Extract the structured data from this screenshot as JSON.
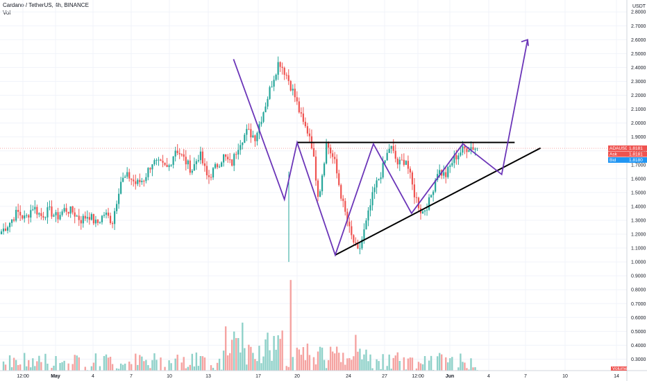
{
  "header": {
    "symbol_line": "Cardano / TetherUS, 4h, BINANCE",
    "vol_label": "Vol"
  },
  "colors": {
    "up": "#26a69a",
    "down": "#ef5350",
    "up_vol": "#8fd1c9",
    "down_vol": "#f5a3a1",
    "pattern": "#000000",
    "projection": "#6b35b8",
    "grid": "#f0f3fa"
  },
  "chart_data": {
    "type": "candlestick",
    "title": "Cardano / TetherUS, 4h, BINANCE",
    "y_axis": {
      "currency": "USDT",
      "ticks": [
        "2.8000",
        "2.7000",
        "2.6000",
        "2.5000",
        "2.4000",
        "2.3000",
        "2.2000",
        "2.1000",
        "2.0000",
        "1.9000",
        "1.8000",
        "1.7000",
        "1.6000",
        "1.5000",
        "1.4000",
        "1.3000",
        "1.2000",
        "1.1000",
        "1.0000",
        "0.9000",
        "0.8000",
        "0.7000",
        "0.6000",
        "0.5000",
        "0.4000",
        "0.3000"
      ]
    },
    "x_axis": {
      "ticks": [
        "12:00",
        "May",
        "4",
        "7",
        "10",
        "13",
        "17",
        "20",
        "24",
        "27",
        "12:00",
        "Jun",
        "4",
        "7",
        "10",
        "14"
      ]
    },
    "price_labels": [
      {
        "name": "ADAUSDT",
        "value": "1.8181",
        "color": "#ef5350"
      },
      {
        "name": "Ask",
        "value": "1.8181",
        "color": "#ef5350"
      },
      {
        "name": "Bid",
        "value": "1.8180",
        "color": "#2196f3"
      }
    ],
    "volume_label": "Volume",
    "price_path": [
      1.22,
      1.28,
      1.36,
      1.31,
      1.4,
      1.33,
      1.37,
      1.32,
      1.38,
      1.36,
      1.3,
      1.34,
      1.27,
      1.35,
      1.29,
      1.58,
      1.62,
      1.56,
      1.6,
      1.72,
      1.7,
      1.67,
      1.82,
      1.74,
      1.66,
      1.78,
      1.6,
      1.68,
      1.76,
      1.7,
      1.86,
      1.94,
      1.9,
      2.08,
      2.27,
      2.45,
      2.34,
      2.19,
      2.0,
      1.9,
      1.46,
      1.86,
      1.72,
      1.43,
      1.2,
      1.06,
      1.28,
      1.52,
      1.66,
      1.84,
      1.7,
      1.74,
      1.5,
      1.35,
      1.44,
      1.66,
      1.62,
      1.74,
      1.8,
      1.83,
      1.82
    ],
    "trendlines": {
      "resistance": {
        "from": [
          "May 20",
          1.86
        ],
        "to": [
          "Jun 6",
          1.86
        ]
      },
      "support": {
        "from": [
          "May 23",
          1.05
        ],
        "to": [
          "Jun 8",
          1.82
        ]
      }
    },
    "projection_zigzag": [
      [
        "May 15",
        2.46
      ],
      [
        "May 19",
        1.45
      ],
      [
        "May 20",
        1.86
      ],
      [
        "May 23",
        1.05
      ],
      [
        "May 26",
        1.85
      ],
      [
        "May 29",
        1.35
      ],
      [
        "Jun 2",
        1.85
      ],
      [
        "Jun 5",
        1.63
      ],
      [
        "Jun 7",
        2.6
      ]
    ]
  }
}
